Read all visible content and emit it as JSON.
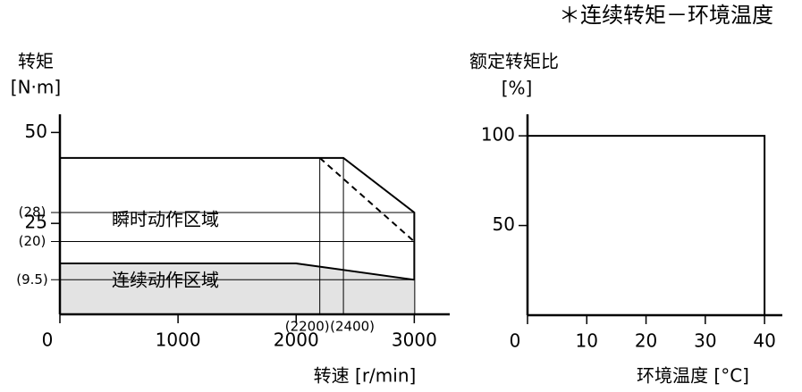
{
  "title": "＊连续转矩－环境温度",
  "chart_data": [
    {
      "type": "line",
      "y_label": "转矩",
      "y_unit": "[N·m]",
      "x_label": "转速 [r/min]",
      "xlim": [
        0,
        3300
      ],
      "ylim": [
        0,
        55
      ],
      "xticks": [
        0,
        1000,
        2000,
        3000
      ],
      "x_markers": [
        {
          "value": 2200,
          "label": "(2200)"
        },
        {
          "value": 2400,
          "label": "(2400)"
        }
      ],
      "yticks": [
        50,
        25,
        {
          "value": 28,
          "label": "(28)"
        },
        {
          "value": 20,
          "label": "(20)"
        },
        {
          "value": 9.5,
          "label": "(9.5)"
        }
      ],
      "series": [
        {
          "name": "瞬时动作区域",
          "color": "#000000",
          "x": [
            0,
            2400,
            3000,
            3000
          ],
          "values": [
            43,
            43,
            28,
            0
          ]
        },
        {
          "color": "#000000",
          "dashed": true,
          "x": [
            2200,
            3000
          ],
          "values": [
            43,
            20
          ]
        },
        {
          "name": "连续动作区域",
          "color": "#000000",
          "fill": "#e3e3e3",
          "x": [
            0,
            2000,
            3000
          ],
          "values": [
            14,
            14,
            9.5
          ]
        }
      ]
    },
    {
      "type": "line",
      "y_label": "额定转矩比",
      "y_unit": "[%]",
      "x_label": "环境温度 [°C]",
      "xlim": [
        0,
        43
      ],
      "ylim": [
        0,
        112
      ],
      "xticks": [
        0,
        10,
        20,
        30,
        40
      ],
      "yticks": [
        50,
        100
      ],
      "series": [
        {
          "color": "#000000",
          "x": [
            0,
            40,
            40
          ],
          "values": [
            100,
            100,
            0
          ]
        }
      ]
    }
  ]
}
